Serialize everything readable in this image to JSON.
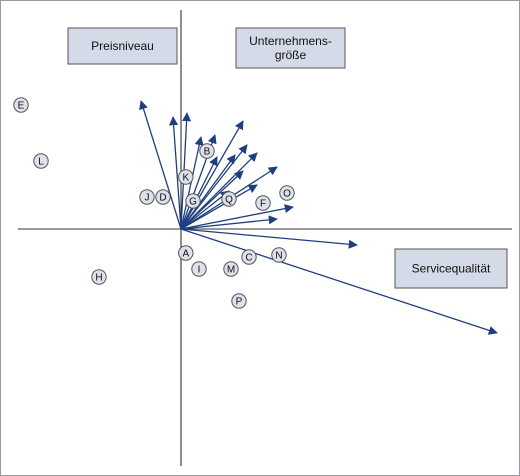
{
  "chart_data": {
    "type": "scatter",
    "title": "",
    "xlabel": "",
    "ylabel": "",
    "axis_labels": [
      {
        "id": "preisniveau",
        "lines": [
          "Preisniveau"
        ]
      },
      {
        "id": "unternehmensgroesse",
        "lines": [
          "Unternehmens-",
          "größe"
        ]
      },
      {
        "id": "servicequalitaet",
        "lines": [
          "Servicequalität"
        ]
      }
    ],
    "points": [
      {
        "label": "E",
        "x": -4.0,
        "y": 3.1
      },
      {
        "label": "L",
        "x": -3.5,
        "y": 1.7
      },
      {
        "label": "J",
        "x": -0.85,
        "y": 0.8
      },
      {
        "label": "D",
        "x": -0.45,
        "y": 0.8
      },
      {
        "label": "B",
        "x": 0.65,
        "y": 1.95
      },
      {
        "label": "K",
        "x": 0.12,
        "y": 1.3
      },
      {
        "label": "G",
        "x": 0.3,
        "y": 0.7
      },
      {
        "label": "Q",
        "x": 1.2,
        "y": 0.75
      },
      {
        "label": "F",
        "x": 2.05,
        "y": 0.65
      },
      {
        "label": "O",
        "x": 2.65,
        "y": 0.9
      },
      {
        "label": "A",
        "x": 0.12,
        "y": -0.6
      },
      {
        "label": "I",
        "x": 0.45,
        "y": -1.0
      },
      {
        "label": "M",
        "x": 1.25,
        "y": -1.0
      },
      {
        "label": "C",
        "x": 1.7,
        "y": -0.7
      },
      {
        "label": "N",
        "x": 2.45,
        "y": -0.65
      },
      {
        "label": "H",
        "x": -2.05,
        "y": -1.2
      },
      {
        "label": "P",
        "x": 1.45,
        "y": -1.8
      }
    ],
    "vectors": [
      {
        "x": -1.0,
        "y": 3.2
      },
      {
        "x": -0.2,
        "y": 2.8
      },
      {
        "x": 0.15,
        "y": 2.9
      },
      {
        "x": 1.55,
        "y": 2.7
      },
      {
        "x": 0.5,
        "y": 2.3
      },
      {
        "x": 0.85,
        "y": 2.35
      },
      {
        "x": 1.65,
        "y": 2.1
      },
      {
        "x": 0.9,
        "y": 1.8
      },
      {
        "x": 1.35,
        "y": 1.85
      },
      {
        "x": 1.9,
        "y": 1.9
      },
      {
        "x": 1.55,
        "y": 1.45
      },
      {
        "x": 2.4,
        "y": 1.55
      },
      {
        "x": 1.2,
        "y": 0.95
      },
      {
        "x": 1.9,
        "y": 1.1
      },
      {
        "x": 2.4,
        "y": 0.25
      },
      {
        "x": 2.8,
        "y": 0.55
      },
      {
        "x": 4.4,
        "y": -0.4
      },
      {
        "x": 7.9,
        "y": -2.6
      }
    ],
    "grid": false,
    "legend": "none"
  }
}
